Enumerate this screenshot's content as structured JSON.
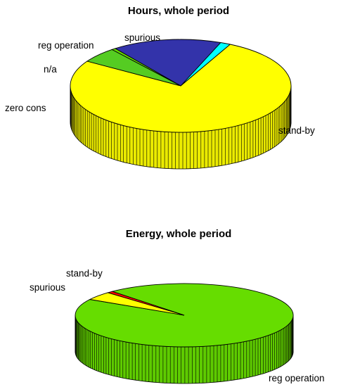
{
  "chart_data": [
    {
      "type": "pie",
      "style": "3d",
      "title": "Hours, whole period",
      "slices": [
        {
          "label": "stand-by",
          "value": 76.5,
          "color": "#ffff00"
        },
        {
          "label": "zero cons",
          "value": 1.5,
          "color": "#00ffff"
        },
        {
          "label": "n/a",
          "value": 16,
          "color": "#3333aa"
        },
        {
          "label": "reg operation",
          "value": 0.6,
          "color": "#66dd00"
        },
        {
          "label": "spurious",
          "value": 5.4,
          "color": "#55cc22"
        }
      ]
    },
    {
      "type": "pie",
      "style": "3d",
      "title": "Energy, whole period",
      "slices": [
        {
          "label": "reg operation",
          "value": 94.8,
          "color": "#66dd00"
        },
        {
          "label": "spurious",
          "value": 0.9,
          "color": "#ff0000"
        },
        {
          "label": "stand-by",
          "value": 4.3,
          "color": "#ffff00"
        }
      ]
    }
  ]
}
